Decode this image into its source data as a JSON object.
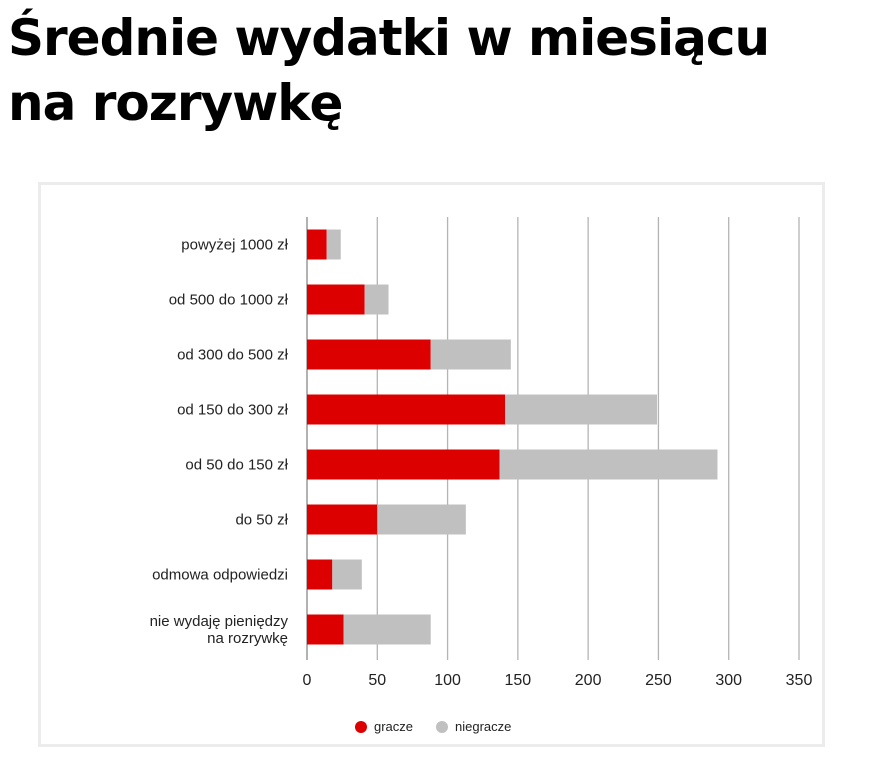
{
  "page": {
    "title_line1": "Średnie wydatki w miesiącu",
    "title_line2": "na rozrywkę"
  },
  "chart_data": {
    "type": "bar",
    "orientation": "horizontal",
    "stacked": true,
    "title": "Średnie wydatki w miesiącu na rozrywkę",
    "xlabel": "",
    "ylabel": "",
    "categories": [
      "powyżej 1000 zł",
      "od 500 do 1000 zł",
      "od 300 do 500 zł",
      "od 150 do 300 zł",
      "od 50 do 150 zł",
      "do 50 zł",
      "odmowa odpowiedzi",
      "nie wydaję pieniędzy na rozrywkę"
    ],
    "category_label_lines": [
      [
        "powyżej 1000 zł"
      ],
      [
        "od 500 do 1000 zł"
      ],
      [
        "od 300 do 500 zł"
      ],
      [
        "od 150 do 300 zł"
      ],
      [
        "od 50 do 150 zł"
      ],
      [
        "do 50 zł"
      ],
      [
        "odmowa odpowiedzi"
      ],
      [
        "nie wydaję pieniędzy",
        "na rozrywkę"
      ]
    ],
    "series": [
      {
        "name": "gracze",
        "color": "#dd0000",
        "values": [
          14,
          41,
          88,
          141,
          137,
          50,
          18,
          26
        ]
      },
      {
        "name": "niegracze",
        "color": "#c0c0c0",
        "values": [
          10,
          17,
          57,
          108,
          155,
          63,
          21,
          62
        ]
      }
    ],
    "xlim": [
      0,
      350
    ],
    "xticks": [
      0,
      50,
      100,
      150,
      200,
      250,
      300,
      350
    ],
    "grid": "vertical",
    "legend": "bottom"
  }
}
